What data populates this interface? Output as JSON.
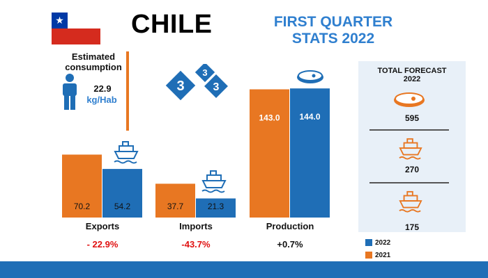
{
  "header": {
    "country": "CHILE",
    "title_line1": "FIRST QUARTER",
    "title_line2": "STATS 2022"
  },
  "consumption": {
    "label_line1": "Estimated",
    "label_line2": "consumption",
    "value": "22.9",
    "unit": "kg/Hab"
  },
  "colors": {
    "orange": "#e87722",
    "blue": "#1f6eb6",
    "red": "#e01010"
  },
  "chart_data": {
    "type": "bar",
    "categories": [
      "Exports",
      "Imports",
      "Production"
    ],
    "series": [
      {
        "name": "2021",
        "values": [
          70.2,
          37.7,
          143.0
        ],
        "labels": [
          "70.2",
          "37.7",
          "143.0"
        ],
        "color": "#e87722"
      },
      {
        "name": "2022",
        "values": [
          54.2,
          21.3,
          144.0
        ],
        "labels": [
          "54.2",
          "21.3",
          "144.0"
        ],
        "color": "#1f6eb6"
      }
    ],
    "changes": [
      "- 22.9%",
      "-43.7%",
      "+0.7%"
    ]
  },
  "forecast": {
    "title_line1": "TOTAL FORECAST",
    "title_line2": "2022",
    "items": [
      {
        "icon": "meat-icon",
        "value": "595"
      },
      {
        "icon": "ship-icon",
        "value": "270"
      },
      {
        "icon": "ship-icon",
        "value": "175"
      }
    ]
  },
  "legend": [
    {
      "label": "2022",
      "color": "#1f6eb6"
    },
    {
      "label": "2021",
      "color": "#e87722"
    }
  ]
}
